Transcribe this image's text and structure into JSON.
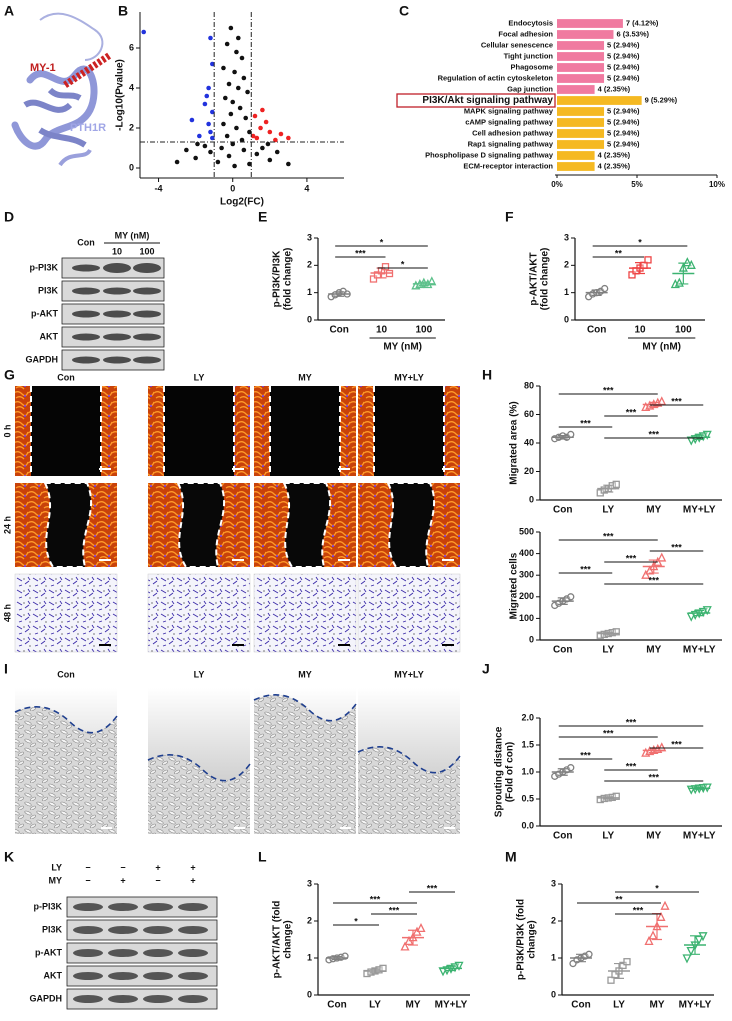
{
  "panel_a": {
    "label": "A",
    "helix_label": "MY-1",
    "receptor_label": "PTH1R"
  },
  "chart_data": [
    {
      "panel": "B",
      "type": "scatter",
      "xlabel": "Log2(FC)",
      "ylabel": "-Log10(Pvalue)",
      "xlim": [
        -5,
        6
      ],
      "ylim": [
        -0.5,
        7.8
      ],
      "xticks": [
        -4,
        0,
        4
      ],
      "yticks": [
        0,
        2,
        4,
        6
      ],
      "thresholds": {
        "x": [
          -1,
          1
        ],
        "y": 1.3
      },
      "series": [
        {
          "color": "#2233dd",
          "x": [
            -4.8,
            -1.2,
            -1.1,
            -1.3,
            -1.5,
            -1.1,
            -1.3,
            -1.2,
            -1.8,
            -1.1,
            -2.2,
            -1.4
          ],
          "y": [
            6.8,
            6.5,
            5.2,
            4.0,
            3.2,
            2.8,
            2.2,
            1.8,
            1.6,
            1.5,
            2.4,
            3.6
          ]
        },
        {
          "color": "#ee2222",
          "x": [
            1.2,
            1.5,
            2.0,
            1.1,
            2.6,
            1.8,
            1.3,
            2.3,
            3.0,
            1.6
          ],
          "y": [
            2.6,
            2.0,
            1.8,
            1.6,
            1.7,
            2.3,
            1.5,
            1.4,
            1.5,
            2.9
          ]
        },
        {
          "color": "#111111",
          "x": [
            -0.3,
            0.2,
            0.5,
            -0.5,
            0.1,
            0.6,
            -0.2,
            0.3,
            0.8,
            -0.4,
            0,
            0.4,
            -0.1,
            0.7,
            -0.5,
            0.2,
            0.9,
            -0.3,
            0.5,
            0,
            -0.6,
            0.6,
            -1.2,
            1.3,
            -2,
            2,
            -0.8,
            0.9,
            -3,
            3,
            -1.5,
            1.6,
            -2.5,
            2.4,
            0.1,
            -0.2,
            1.9,
            -1.9,
            0.3,
            -0.1
          ],
          "y": [
            6.2,
            5.8,
            5.5,
            5.0,
            4.8,
            4.5,
            4.2,
            4.0,
            3.8,
            3.5,
            3.3,
            3.0,
            2.7,
            2.5,
            2.2,
            2.0,
            1.8,
            1.6,
            1.4,
            1.2,
            1.0,
            0.9,
            0.8,
            0.7,
            0.5,
            0.4,
            0.3,
            0.2,
            0.3,
            0.2,
            1.1,
            1.0,
            0.9,
            0.8,
            0.1,
            0.6,
            1.2,
            1.2,
            6.5,
            7.0
          ]
        }
      ]
    },
    {
      "panel": "C",
      "type": "barh",
      "categories": [
        "Endocytosis",
        "Focal adhesion",
        "Cellular senescence",
        "Tight junction",
        "Phagosome",
        "Regulation of actin cytoskeleton",
        "Gap junction",
        "PI3K/Akt signaling pathway",
        "MAPK signaling pathway",
        "cAMP signaling pathway",
        "Cell adhesion pathway",
        "Rap1 signaling pathway",
        "Phospholipase D signaling pathway",
        "ECM-receptor interaction"
      ],
      "values": [
        4.12,
        3.53,
        2.94,
        2.94,
        2.94,
        2.94,
        2.35,
        5.29,
        2.94,
        2.94,
        2.94,
        2.94,
        2.35,
        2.35
      ],
      "value_labels": [
        "7 (4.12%)",
        "6 (3.53%)",
        "5 (2.94%)",
        "5 (2.94%)",
        "5 (2.94%)",
        "5 (2.94%)",
        "4 (2.35%)",
        "9 (5.29%)",
        "5 (2.94%)",
        "5 (2.94%)",
        "5 (2.94%)",
        "5 (2.94%)",
        "4 (2.35%)",
        "4 (2.35%)"
      ],
      "colors": [
        "#f07aa0",
        "#f07aa0",
        "#f07aa0",
        "#f07aa0",
        "#f07aa0",
        "#f07aa0",
        "#f07aa0",
        "#f5b922",
        "#f5b922",
        "#f5b922",
        "#f5b922",
        "#f5b922",
        "#f5b922",
        "#f5b922"
      ],
      "highlight_index": 7,
      "xlim": [
        0,
        10
      ],
      "xticks": [
        {
          "value": 0,
          "label": "0%"
        },
        {
          "value": 5,
          "label": "5%"
        },
        {
          "value": 10,
          "label": "10%"
        }
      ]
    },
    {
      "panel": "E",
      "type": "dot",
      "ylabel": [
        "p-PI3K/PI3K",
        "(fold change)"
      ],
      "categories": [
        "Con",
        "10",
        "100"
      ],
      "group_label": "MY (nM)",
      "ylim": [
        0,
        3
      ],
      "yticks": [
        0,
        1,
        2,
        3
      ],
      "series": [
        {
          "color": "#808080",
          "marker": "circle",
          "points": [
            0.85,
            0.92,
            1.0,
            1.05,
            0.95
          ],
          "mean": 0.95,
          "sd": 0.08
        },
        {
          "color": "#f07070",
          "marker": "square",
          "points": [
            1.5,
            1.65,
            1.8,
            1.95,
            1.7
          ],
          "mean": 1.72,
          "sd": 0.18
        },
        {
          "color": "#5cc08a",
          "marker": "triangle",
          "points": [
            1.25,
            1.3,
            1.35,
            1.3,
            1.4
          ],
          "mean": 1.32,
          "sd": 0.06
        }
      ],
      "brackets": [
        {
          "between": [
            0,
            2
          ],
          "label": "*"
        },
        {
          "between": [
            0,
            1
          ],
          "label": "***"
        },
        {
          "between": [
            1,
            2
          ],
          "label": "*"
        }
      ]
    },
    {
      "panel": "F",
      "type": "dot",
      "ylabel": [
        "p-AKT/AKT",
        "(fold change)"
      ],
      "categories": [
        "Con",
        "10",
        "100"
      ],
      "group_label": "MY (nM)",
      "ylim": [
        0,
        3
      ],
      "yticks": [
        0,
        1,
        2,
        3
      ],
      "series": [
        {
          "color": "#808080",
          "marker": "circle",
          "points": [
            0.85,
            0.95,
            1.0,
            1.05,
            1.15
          ],
          "mean": 1.0,
          "sd": 0.1
        },
        {
          "color": "#ee4444",
          "marker": "square",
          "points": [
            1.65,
            1.8,
            1.9,
            2.0,
            2.2
          ],
          "mean": 1.9,
          "sd": 0.2
        },
        {
          "color": "#3cb371",
          "marker": "triangle",
          "points": [
            1.3,
            1.35,
            1.9,
            2.1,
            2.0
          ],
          "mean": 1.7,
          "sd": 0.38
        }
      ],
      "brackets": [
        {
          "between": [
            0,
            2
          ],
          "label": "*"
        },
        {
          "between": [
            0,
            1
          ],
          "label": "**"
        }
      ]
    },
    {
      "panel": "H",
      "type": "dot",
      "ylabel": [
        "Migrated  area (%)"
      ],
      "categories": [
        "Con",
        "LY",
        "MY",
        "MY+LY"
      ],
      "ylim": [
        0,
        80
      ],
      "yticks": [
        0,
        20,
        40,
        60,
        80
      ],
      "series": [
        {
          "color": "#808080",
          "marker": "circle",
          "points": [
            43,
            44,
            45,
            44,
            46
          ],
          "mean": 44,
          "sd": 1.2
        },
        {
          "color": "#999999",
          "marker": "square",
          "points": [
            5,
            7,
            8,
            10,
            11
          ],
          "mean": 8,
          "sd": 2.4
        },
        {
          "color": "#f07070",
          "marker": "triangle",
          "points": [
            65,
            66,
            67,
            68,
            69
          ],
          "mean": 67,
          "sd": 1.5
        },
        {
          "color": "#3cb371",
          "marker": "tridown",
          "points": [
            42,
            43,
            44,
            45,
            46
          ],
          "mean": 44,
          "sd": 1.5
        }
      ],
      "brackets": [
        {
          "between": [
            0,
            2
          ],
          "label": "***"
        },
        {
          "between": [
            2,
            3
          ],
          "label": "***"
        },
        {
          "between": [
            1,
            2
          ],
          "label": "***"
        },
        {
          "between": [
            0,
            1
          ],
          "label": "***"
        },
        {
          "between": [
            1,
            3
          ],
          "label": "***"
        }
      ]
    },
    {
      "type": "dot",
      "ylabel": [
        "Migrated cells"
      ],
      "categories": [
        "Con",
        "LY",
        "MY",
        "MY+LY"
      ],
      "ylim": [
        0,
        500
      ],
      "yticks": [
        0,
        100,
        200,
        300,
        400,
        500
      ],
      "series": [
        {
          "color": "#808080",
          "marker": "circle",
          "points": [
            160,
            170,
            180,
            190,
            200
          ],
          "mean": 180,
          "sd": 15
        },
        {
          "color": "#999999",
          "marker": "square",
          "points": [
            22,
            26,
            30,
            34,
            38
          ],
          "mean": 30,
          "sd": 6
        },
        {
          "color": "#f07070",
          "marker": "triangle",
          "points": [
            300,
            320,
            340,
            360,
            380
          ],
          "mean": 340,
          "sd": 30
        },
        {
          "color": "#3cb371",
          "marker": "tridown",
          "points": [
            110,
            118,
            125,
            132,
            140
          ],
          "mean": 125,
          "sd": 12
        }
      ],
      "brackets": [
        {
          "between": [
            0,
            2
          ],
          "label": "***"
        },
        {
          "between": [
            2,
            3
          ],
          "label": "***"
        },
        {
          "between": [
            1,
            2
          ],
          "label": "***"
        },
        {
          "between": [
            0,
            1
          ],
          "label": "***"
        },
        {
          "between": [
            1,
            3
          ],
          "label": "***"
        }
      ]
    },
    {
      "panel": "J",
      "type": "dot",
      "ylabel": [
        "Sprouting distance",
        "(Fold of con)"
      ],
      "categories": [
        "Con",
        "LY",
        "MY",
        "MY+LY"
      ],
      "ylim": [
        0,
        2
      ],
      "yticks": [
        {
          "value": 0,
          "label": "0.0"
        },
        0.5,
        {
          "value": 1,
          "label": "1.0"
        },
        1.5,
        {
          "value": 2,
          "label": "2.0"
        }
      ],
      "series": [
        {
          "color": "#808080",
          "marker": "circle",
          "points": [
            0.92,
            0.96,
            1.0,
            1.04,
            1.08
          ],
          "mean": 1.0,
          "sd": 0.06
        },
        {
          "color": "#999999",
          "marker": "square",
          "points": [
            0.49,
            0.51,
            0.52,
            0.53,
            0.55
          ],
          "mean": 0.52,
          "sd": 0.02
        },
        {
          "color": "#f07070",
          "marker": "triangle",
          "points": [
            1.35,
            1.38,
            1.4,
            1.42,
            1.45
          ],
          "mean": 1.4,
          "sd": 0.04
        },
        {
          "color": "#3cb371",
          "marker": "tridown",
          "points": [
            0.68,
            0.69,
            0.7,
            0.71,
            0.72
          ],
          "mean": 0.7,
          "sd": 0.02
        }
      ],
      "brackets": [
        {
          "between": [
            0,
            3
          ],
          "label": "***"
        },
        {
          "between": [
            0,
            2
          ],
          "label": "***"
        },
        {
          "between": [
            2,
            3
          ],
          "label": "***"
        },
        {
          "between": [
            0,
            1
          ],
          "label": "***"
        },
        {
          "between": [
            1,
            2
          ],
          "label": "***"
        },
        {
          "between": [
            1,
            3
          ],
          "label": "***"
        }
      ]
    },
    {
      "panel": "L",
      "type": "dot",
      "ylabel": [
        "p-AKT/AKT (fold",
        "change)"
      ],
      "categories": [
        "Con",
        "LY",
        "MY",
        "MY+LY"
      ],
      "ylim": [
        0,
        3
      ],
      "yticks": [
        0,
        1,
        2,
        3
      ],
      "series": [
        {
          "color": "#808080",
          "marker": "circle",
          "points": [
            0.95,
            0.98,
            1.0,
            1.02,
            1.05
          ],
          "mean": 1.0,
          "sd": 0.04
        },
        {
          "color": "#999999",
          "marker": "square",
          "points": [
            0.58,
            0.62,
            0.65,
            0.68,
            0.72
          ],
          "mean": 0.65,
          "sd": 0.05
        },
        {
          "color": "#f07070",
          "marker": "triangle",
          "points": [
            1.3,
            1.45,
            1.55,
            1.7,
            1.8
          ],
          "mean": 1.55,
          "sd": 0.2
        },
        {
          "color": "#3cb371",
          "marker": "tridown",
          "points": [
            0.65,
            0.68,
            0.72,
            0.76,
            0.8
          ],
          "mean": 0.72,
          "sd": 0.06
        }
      ],
      "brackets": [
        {
          "between": [
            2,
            3
          ],
          "label": "***"
        },
        {
          "between": [
            0,
            2
          ],
          "label": "***"
        },
        {
          "between": [
            1,
            2
          ],
          "label": "***"
        },
        {
          "between": [
            0,
            1
          ],
          "label": "*"
        }
      ]
    },
    {
      "panel": "M",
      "type": "dot",
      "ylabel": [
        "p-PI3K/PI3K (fold",
        "change)"
      ],
      "categories": [
        "Con",
        "LY",
        "MY",
        "MY+LY"
      ],
      "ylim": [
        0,
        3
      ],
      "yticks": [
        0,
        1,
        2,
        3
      ],
      "series": [
        {
          "color": "#808080",
          "marker": "circle",
          "points": [
            0.85,
            0.95,
            1.0,
            1.05,
            1.1
          ],
          "mean": 1.0,
          "sd": 0.1
        },
        {
          "color": "#999999",
          "marker": "square",
          "points": [
            0.4,
            0.55,
            0.65,
            0.8,
            0.9
          ],
          "mean": 0.65,
          "sd": 0.2
        },
        {
          "color": "#f07070",
          "marker": "triangle",
          "points": [
            1.45,
            1.6,
            1.85,
            2.1,
            2.4
          ],
          "mean": 1.85,
          "sd": 0.35
        },
        {
          "color": "#3cb371",
          "marker": "tridown",
          "points": [
            1.0,
            1.2,
            1.35,
            1.5,
            1.6
          ],
          "mean": 1.35,
          "sd": 0.25
        }
      ],
      "brackets": [
        {
          "between": [
            1,
            3
          ],
          "label": "*"
        },
        {
          "between": [
            0,
            2
          ],
          "label": "**"
        },
        {
          "between": [
            1,
            2
          ],
          "label": "***"
        }
      ]
    }
  ],
  "panel_d": {
    "label": "D",
    "columns": [
      "Con",
      "10",
      "100"
    ],
    "group": "MY (nM)",
    "rows": [
      "p-PI3K",
      "PI3K",
      "p-AKT",
      "AKT",
      "GAPDH"
    ]
  },
  "panel_g": {
    "label": "G",
    "columns": [
      "Con",
      "LY",
      "MY",
      "MY+LY"
    ],
    "rows": [
      "0 h",
      "24 h",
      "48 h"
    ]
  },
  "panel_i": {
    "label": "I",
    "columns": [
      "Con",
      "LY",
      "MY",
      "MY+LY"
    ]
  },
  "panel_k": {
    "label": "K",
    "treatments": [
      {
        "name": "LY",
        "signs": [
          "−",
          "−",
          "+",
          "+"
        ]
      },
      {
        "name": "MY",
        "signs": [
          "−",
          "+",
          "−",
          "+"
        ]
      }
    ],
    "rows": [
      "p-PI3K",
      "PI3K",
      "p-AKT",
      "AKT",
      "GAPDH"
    ]
  }
}
